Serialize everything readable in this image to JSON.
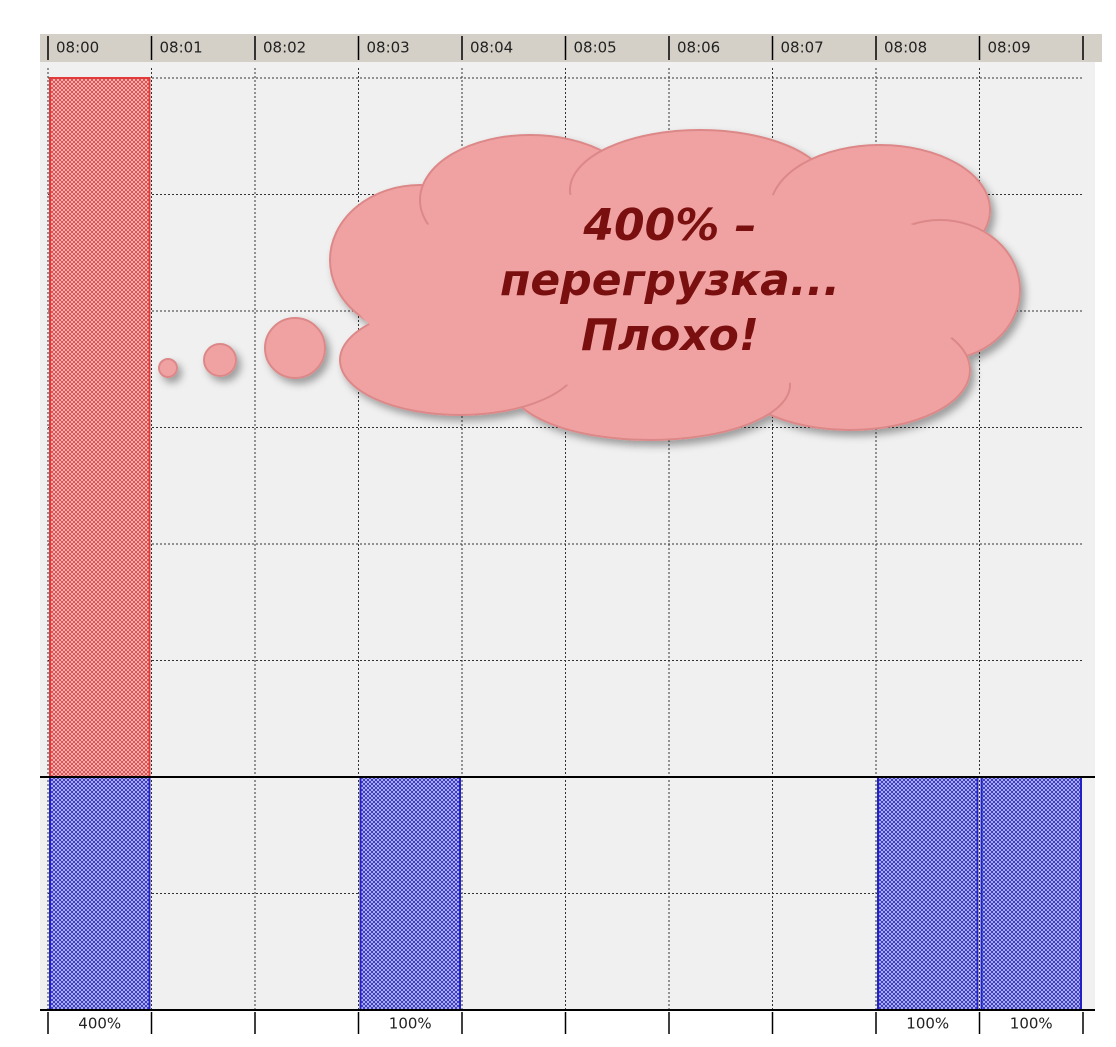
{
  "chart_data": {
    "type": "bar",
    "categories": [
      "08:00",
      "08:01",
      "08:02",
      "08:03",
      "08:04",
      "08:05",
      "08:06",
      "08:07",
      "08:08",
      "08:09"
    ],
    "values": [
      400,
      null,
      null,
      100,
      null,
      null,
      null,
      null,
      100,
      100
    ],
    "value_labels": [
      "400%",
      null,
      null,
      "100%",
      null,
      null,
      null,
      null,
      "100%",
      "100%"
    ],
    "ylim": [
      0,
      400
    ],
    "capacity": 100,
    "color": "#2222c8",
    "over_color": "#e23a3a",
    "grid": true,
    "annotation": [
      "400% –",
      "перегрузка...",
      "Плохо!"
    ]
  }
}
